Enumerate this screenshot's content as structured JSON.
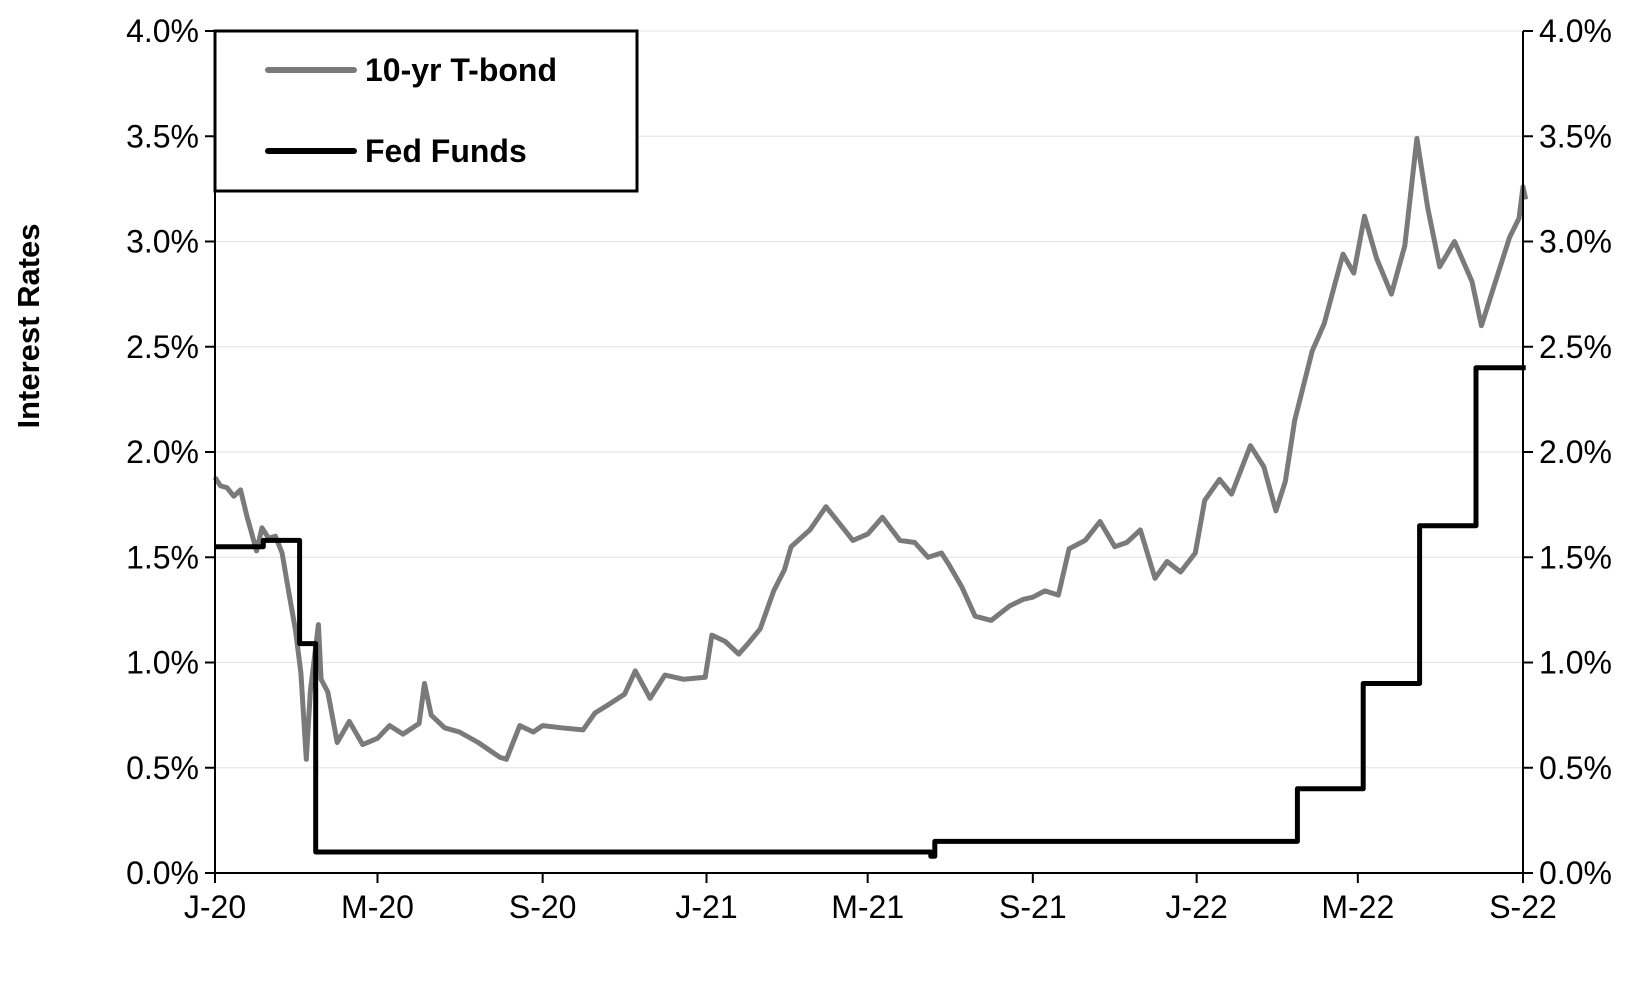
{
  "chart_data": {
    "type": "line",
    "title": "",
    "ylabel": "Interest Rates",
    "ylabel_right": "",
    "xlabel": "",
    "ylim": [
      0,
      0.04
    ],
    "yticks": [
      "0.0%",
      "0.5%",
      "1.0%",
      "1.5%",
      "2.0%",
      "2.5%",
      "3.0%",
      "3.5%",
      "4.0%"
    ],
    "xticks": [
      "J-20",
      "M-20",
      "S-20",
      "J-21",
      "M-21",
      "S-21",
      "J-22",
      "M-22",
      "S-22"
    ],
    "xlim": [
      "2020-01",
      "2022-09"
    ],
    "grid": true,
    "legend_position": "top-left",
    "colors": {
      "tbond": "#7a7a7a",
      "fedfunds": "#000000",
      "grid": "#e6e6e6"
    },
    "series": [
      {
        "name": "10-yr T-bond",
        "style": "line",
        "points": [
          [
            "2020-01-01",
            1.88
          ],
          [
            "2020-01-05",
            1.84
          ],
          [
            "2020-01-10",
            1.83
          ],
          [
            "2020-01-15",
            1.79
          ],
          [
            "2020-01-20",
            1.82
          ],
          [
            "2020-01-25",
            1.69
          ],
          [
            "2020-02-01",
            1.53
          ],
          [
            "2020-02-05",
            1.64
          ],
          [
            "2020-02-10",
            1.59
          ],
          [
            "2020-02-15",
            1.6
          ],
          [
            "2020-02-20",
            1.52
          ],
          [
            "2020-02-25",
            1.33
          ],
          [
            "2020-03-01",
            1.15
          ],
          [
            "2020-03-05",
            0.95
          ],
          [
            "2020-03-09",
            0.54
          ],
          [
            "2020-03-12",
            0.86
          ],
          [
            "2020-03-18",
            1.18
          ],
          [
            "2020-03-20",
            0.92
          ],
          [
            "2020-03-25",
            0.86
          ],
          [
            "2020-04-01",
            0.62
          ],
          [
            "2020-04-10",
            0.72
          ],
          [
            "2020-04-20",
            0.61
          ],
          [
            "2020-05-01",
            0.64
          ],
          [
            "2020-05-10",
            0.7
          ],
          [
            "2020-05-20",
            0.66
          ],
          [
            "2020-06-01",
            0.71
          ],
          [
            "2020-06-05",
            0.9
          ],
          [
            "2020-06-10",
            0.75
          ],
          [
            "2020-06-20",
            0.69
          ],
          [
            "2020-07-01",
            0.67
          ],
          [
            "2020-07-15",
            0.62
          ],
          [
            "2020-07-31",
            0.55
          ],
          [
            "2020-08-05",
            0.54
          ],
          [
            "2020-08-15",
            0.7
          ],
          [
            "2020-08-25",
            0.67
          ],
          [
            "2020-09-01",
            0.7
          ],
          [
            "2020-09-15",
            0.69
          ],
          [
            "2020-10-01",
            0.68
          ],
          [
            "2020-10-10",
            0.76
          ],
          [
            "2020-10-20",
            0.8
          ],
          [
            "2020-11-01",
            0.85
          ],
          [
            "2020-11-09",
            0.96
          ],
          [
            "2020-11-20",
            0.83
          ],
          [
            "2020-12-01",
            0.94
          ],
          [
            "2020-12-15",
            0.92
          ],
          [
            "2020-12-31",
            0.93
          ],
          [
            "2021-01-05",
            1.13
          ],
          [
            "2021-01-15",
            1.1
          ],
          [
            "2021-01-25",
            1.04
          ],
          [
            "2021-02-01",
            1.09
          ],
          [
            "2021-02-10",
            1.16
          ],
          [
            "2021-02-20",
            1.34
          ],
          [
            "2021-02-28",
            1.44
          ],
          [
            "2021-03-05",
            1.55
          ],
          [
            "2021-03-19",
            1.63
          ],
          [
            "2021-03-31",
            1.74
          ],
          [
            "2021-04-10",
            1.66
          ],
          [
            "2021-04-20",
            1.58
          ],
          [
            "2021-05-01",
            1.61
          ],
          [
            "2021-05-12",
            1.69
          ],
          [
            "2021-05-25",
            1.58
          ],
          [
            "2021-06-05",
            1.57
          ],
          [
            "2021-06-15",
            1.5
          ],
          [
            "2021-06-25",
            1.52
          ],
          [
            "2021-07-01",
            1.46
          ],
          [
            "2021-07-10",
            1.36
          ],
          [
            "2021-07-20",
            1.22
          ],
          [
            "2021-08-01",
            1.2
          ],
          [
            "2021-08-15",
            1.27
          ],
          [
            "2021-08-25",
            1.3
          ],
          [
            "2021-09-01",
            1.31
          ],
          [
            "2021-09-10",
            1.34
          ],
          [
            "2021-09-20",
            1.32
          ],
          [
            "2021-09-28",
            1.54
          ],
          [
            "2021-10-10",
            1.58
          ],
          [
            "2021-10-21",
            1.67
          ],
          [
            "2021-11-01",
            1.55
          ],
          [
            "2021-11-10",
            1.57
          ],
          [
            "2021-11-20",
            1.63
          ],
          [
            "2021-12-01",
            1.4
          ],
          [
            "2021-12-10",
            1.48
          ],
          [
            "2021-12-20",
            1.43
          ],
          [
            "2021-12-31",
            1.52
          ],
          [
            "2022-01-07",
            1.77
          ],
          [
            "2022-01-18",
            1.87
          ],
          [
            "2022-01-27",
            1.8
          ],
          [
            "2022-02-10",
            2.03
          ],
          [
            "2022-02-20",
            1.93
          ],
          [
            "2022-03-01",
            1.72
          ],
          [
            "2022-03-08",
            1.86
          ],
          [
            "2022-03-15",
            2.15
          ],
          [
            "2022-03-28",
            2.48
          ],
          [
            "2022-04-06",
            2.61
          ],
          [
            "2022-04-20",
            2.94
          ],
          [
            "2022-04-28",
            2.85
          ],
          [
            "2022-05-06",
            3.12
          ],
          [
            "2022-05-15",
            2.92
          ],
          [
            "2022-05-26",
            2.75
          ],
          [
            "2022-06-05",
            2.98
          ],
          [
            "2022-06-14",
            3.49
          ],
          [
            "2022-06-22",
            3.16
          ],
          [
            "2022-07-01",
            2.88
          ],
          [
            "2022-07-12",
            3.0
          ],
          [
            "2022-07-25",
            2.81
          ],
          [
            "2022-08-01",
            2.6
          ],
          [
            "2022-08-10",
            2.78
          ],
          [
            "2022-08-22",
            3.02
          ],
          [
            "2022-08-29",
            3.11
          ],
          [
            "2022-09-01",
            3.26
          ],
          [
            "2022-09-03",
            3.2
          ]
        ]
      },
      {
        "name": "Fed Funds",
        "style": "step",
        "points": [
          [
            "2020-01-01",
            1.55
          ],
          [
            "2020-02-06",
            1.58
          ],
          [
            "2020-03-04",
            1.09
          ],
          [
            "2020-03-16",
            0.1
          ],
          [
            "2021-06-17",
            0.08
          ],
          [
            "2021-06-20",
            0.15
          ],
          [
            "2022-03-17",
            0.4
          ],
          [
            "2022-05-05",
            0.9
          ],
          [
            "2022-06-16",
            1.65
          ],
          [
            "2022-07-28",
            2.4
          ],
          [
            "2022-09-03",
            2.4
          ]
        ]
      }
    ]
  }
}
